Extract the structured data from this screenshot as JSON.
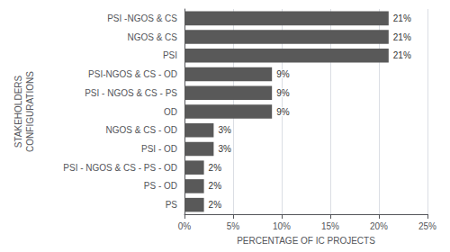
{
  "chart_data": {
    "type": "bar",
    "orientation": "horizontal",
    "categories": [
      "PS",
      "PS - OD",
      "PSI - NGOS & CS - PS - OD",
      "PSI - OD",
      "NGOS & CS - OD",
      "OD",
      "PSI - NGOS & CS - PS",
      "PSI-NGOS & CS - OD",
      "PSI",
      "NGOS & CS",
      "PSI -NGOS & CS"
    ],
    "values": [
      2,
      2,
      2,
      3,
      3,
      9,
      9,
      9,
      21,
      21,
      21
    ],
    "value_labels": [
      "2%",
      "2%",
      "2%",
      "3%",
      "3%",
      "9%",
      "9%",
      "9%",
      "21%",
      "21%",
      "21%"
    ],
    "data_labels": true,
    "color": "#595959",
    "xlabel": "PERCENTAGE OF IC PROJECTS",
    "ylabel": "STAKEHOLDERS\nCONFIGURATIONS",
    "xlim": [
      0,
      25
    ],
    "xticks": [
      {
        "value": 0,
        "label": "0%"
      },
      {
        "value": 5,
        "label": "5%"
      },
      {
        "value": 10,
        "label": "10%"
      },
      {
        "value": 15,
        "label": "15%"
      },
      {
        "value": 20,
        "label": "20%"
      },
      {
        "value": 25,
        "label": "25%"
      }
    ],
    "grid": true
  }
}
